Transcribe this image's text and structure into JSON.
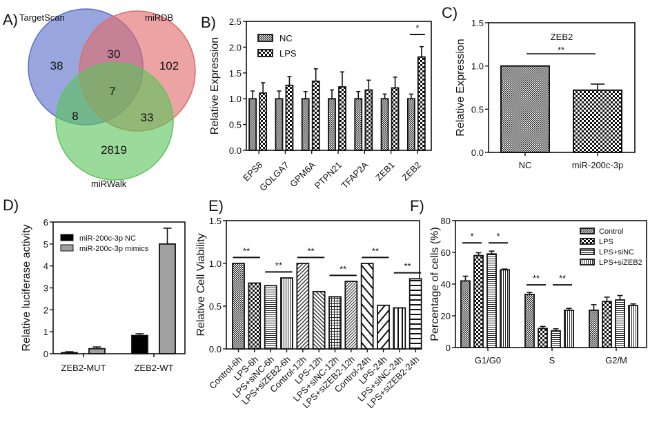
{
  "panels": {
    "A": {
      "label": "A)"
    },
    "B": {
      "label": "B)"
    },
    "C": {
      "label": "C)"
    },
    "D": {
      "label": "D)"
    },
    "E": {
      "label": "E)"
    },
    "F": {
      "label": "F)"
    }
  },
  "chart_data": [
    {
      "id": "A",
      "type": "venn",
      "sets": [
        {
          "name": "TargetScan",
          "color": "#5b6fc8"
        },
        {
          "name": "miRDB",
          "color": "#e06a6a"
        },
        {
          "name": "miRWalk",
          "color": "#5cc45c"
        }
      ],
      "regions": {
        "TargetScan_only": 38,
        "miRDB_only": 102,
        "miRWalk_only": 2819,
        "TargetScan_miRDB": 30,
        "TargetScan_miRWalk": 8,
        "miRDB_miRWalk": 33,
        "all": 7
      }
    },
    {
      "id": "B",
      "type": "bar",
      "title": "",
      "xlabel": "",
      "ylabel": "Relative Expression",
      "ylim": [
        0,
        2.5
      ],
      "yticks": [
        "0.0",
        "0.5",
        "1.0",
        "1.5",
        "2.0",
        "2.5"
      ],
      "categories": [
        "EPS8",
        "GOLGA7",
        "GPM6A",
        "PTPN21",
        "TFAP2A",
        "ZEB1",
        "ZEB2"
      ],
      "series": [
        {
          "name": "NC",
          "values": [
            1.0,
            1.0,
            1.0,
            1.0,
            1.0,
            1.0,
            1.0
          ],
          "errors": [
            0.15,
            0.15,
            0.14,
            0.17,
            0.14,
            0.09,
            0.09
          ]
        },
        {
          "name": "LPS",
          "values": [
            1.11,
            1.26,
            1.34,
            1.23,
            1.17,
            1.21,
            1.81
          ],
          "errors": [
            0.2,
            0.17,
            0.24,
            0.29,
            0.19,
            0.21,
            0.2
          ]
        }
      ],
      "legend": "top-left",
      "annotations": [
        {
          "category": "ZEB2",
          "text": "*"
        }
      ]
    },
    {
      "id": "C",
      "type": "bar",
      "title": "ZEB2",
      "xlabel": "",
      "ylabel": "Relative Expression",
      "ylim": [
        0,
        1.5
      ],
      "yticks": [
        "0.0",
        "0.5",
        "1.0",
        "1.5"
      ],
      "categories": [
        "NC",
        "miR-200c-3p"
      ],
      "values": [
        1.0,
        0.72
      ],
      "errors": [
        0,
        0.07
      ],
      "annotations": [
        {
          "text": "**"
        }
      ]
    },
    {
      "id": "D",
      "type": "bar",
      "title": "",
      "xlabel": "",
      "ylabel": "Relative luciferase activity",
      "ylim": [
        0,
        6
      ],
      "yticks": [
        "0",
        "1",
        "2",
        "3",
        "4",
        "5",
        "6"
      ],
      "categories": [
        "ZEB2-MUT",
        "ZEB2-WT"
      ],
      "series": [
        {
          "name": "miR-200c-3p NC",
          "color": "#000000",
          "values": [
            0.05,
            0.83
          ],
          "errors": [
            0.04,
            0.08
          ]
        },
        {
          "name": "miR-200c-3p mimics",
          "color": "#a0a0a0",
          "values": [
            0.23,
            5.0
          ],
          "errors": [
            0.08,
            0.72
          ]
        }
      ],
      "legend": "top-left"
    },
    {
      "id": "E",
      "type": "bar",
      "title": "",
      "xlabel": "",
      "ylabel": "Relative Cell Viability",
      "ylim": [
        0,
        1.5
      ],
      "yticks": [
        "0.0",
        "0.5",
        "1.0",
        "1.5"
      ],
      "categories": [
        "Control-6h",
        "LPS-6h",
        "LPS+siNC-6h",
        "LPS+siZEB2-6h",
        "Control-12h",
        "LPS-12h",
        "LPS+siNC-12h",
        "LPS+siZEB2-12h",
        "Control-24h",
        "LPS-24h",
        "LPS+siNC-24h",
        "LPS+siZEB2-24h"
      ],
      "values": [
        1.0,
        0.77,
        0.74,
        0.83,
        1.0,
        0.67,
        0.61,
        0.79,
        1.0,
        0.51,
        0.48,
        0.82
      ],
      "patterns": [
        "fine-check",
        "check",
        "hlines",
        "vlines",
        "diag",
        "diag-back",
        "grid",
        "diag-fine",
        "diag-wide-back",
        "diag-wide",
        "vlines-wide",
        "hlines-wide"
      ],
      "annotations": [
        {
          "between": [
            0,
            1
          ],
          "text": "**"
        },
        {
          "between": [
            2,
            3
          ],
          "text": "**"
        },
        {
          "between": [
            4,
            5
          ],
          "text": "**"
        },
        {
          "between": [
            6,
            7
          ],
          "text": "**"
        },
        {
          "between": [
            8,
            9
          ],
          "text": "**"
        },
        {
          "between": [
            10,
            11
          ],
          "text": "**"
        }
      ]
    },
    {
      "id": "F",
      "type": "bar",
      "title": "",
      "xlabel": "",
      "ylabel": "Percentage of cells (%)",
      "ylim": [
        0,
        80
      ],
      "yticks": [
        "0",
        "20",
        "40",
        "60",
        "80"
      ],
      "categories": [
        "G1/G0",
        "S",
        "G2/M"
      ],
      "series": [
        {
          "name": "Control",
          "values": [
            42,
            33.5,
            23.5
          ],
          "errors": [
            3,
            1.2,
            3.5
          ]
        },
        {
          "name": "LPS",
          "values": [
            58,
            12,
            29
          ],
          "errors": [
            1.8,
            1.3,
            2.8
          ]
        },
        {
          "name": "LPS+siNC",
          "values": [
            59,
            10.5,
            30
          ],
          "errors": [
            1.8,
            1.3,
            2.8
          ]
        },
        {
          "name": "LPS+siZEB2",
          "values": [
            49,
            23.5,
            26.5
          ],
          "errors": [
            0.5,
            1.2,
            1
          ]
        }
      ],
      "legend": "top-right",
      "annotations": [
        {
          "category": "G1/G0",
          "between": [
            "Control",
            "LPS"
          ],
          "text": "*"
        },
        {
          "category": "G1/G0",
          "between": [
            "LPS+siNC",
            "LPS+siZEB2"
          ],
          "text": "*"
        },
        {
          "category": "S",
          "between": [
            "Control",
            "LPS"
          ],
          "text": "**"
        },
        {
          "category": "S",
          "between": [
            "LPS+siNC",
            "LPS+siZEB2"
          ],
          "text": "**"
        }
      ]
    }
  ]
}
